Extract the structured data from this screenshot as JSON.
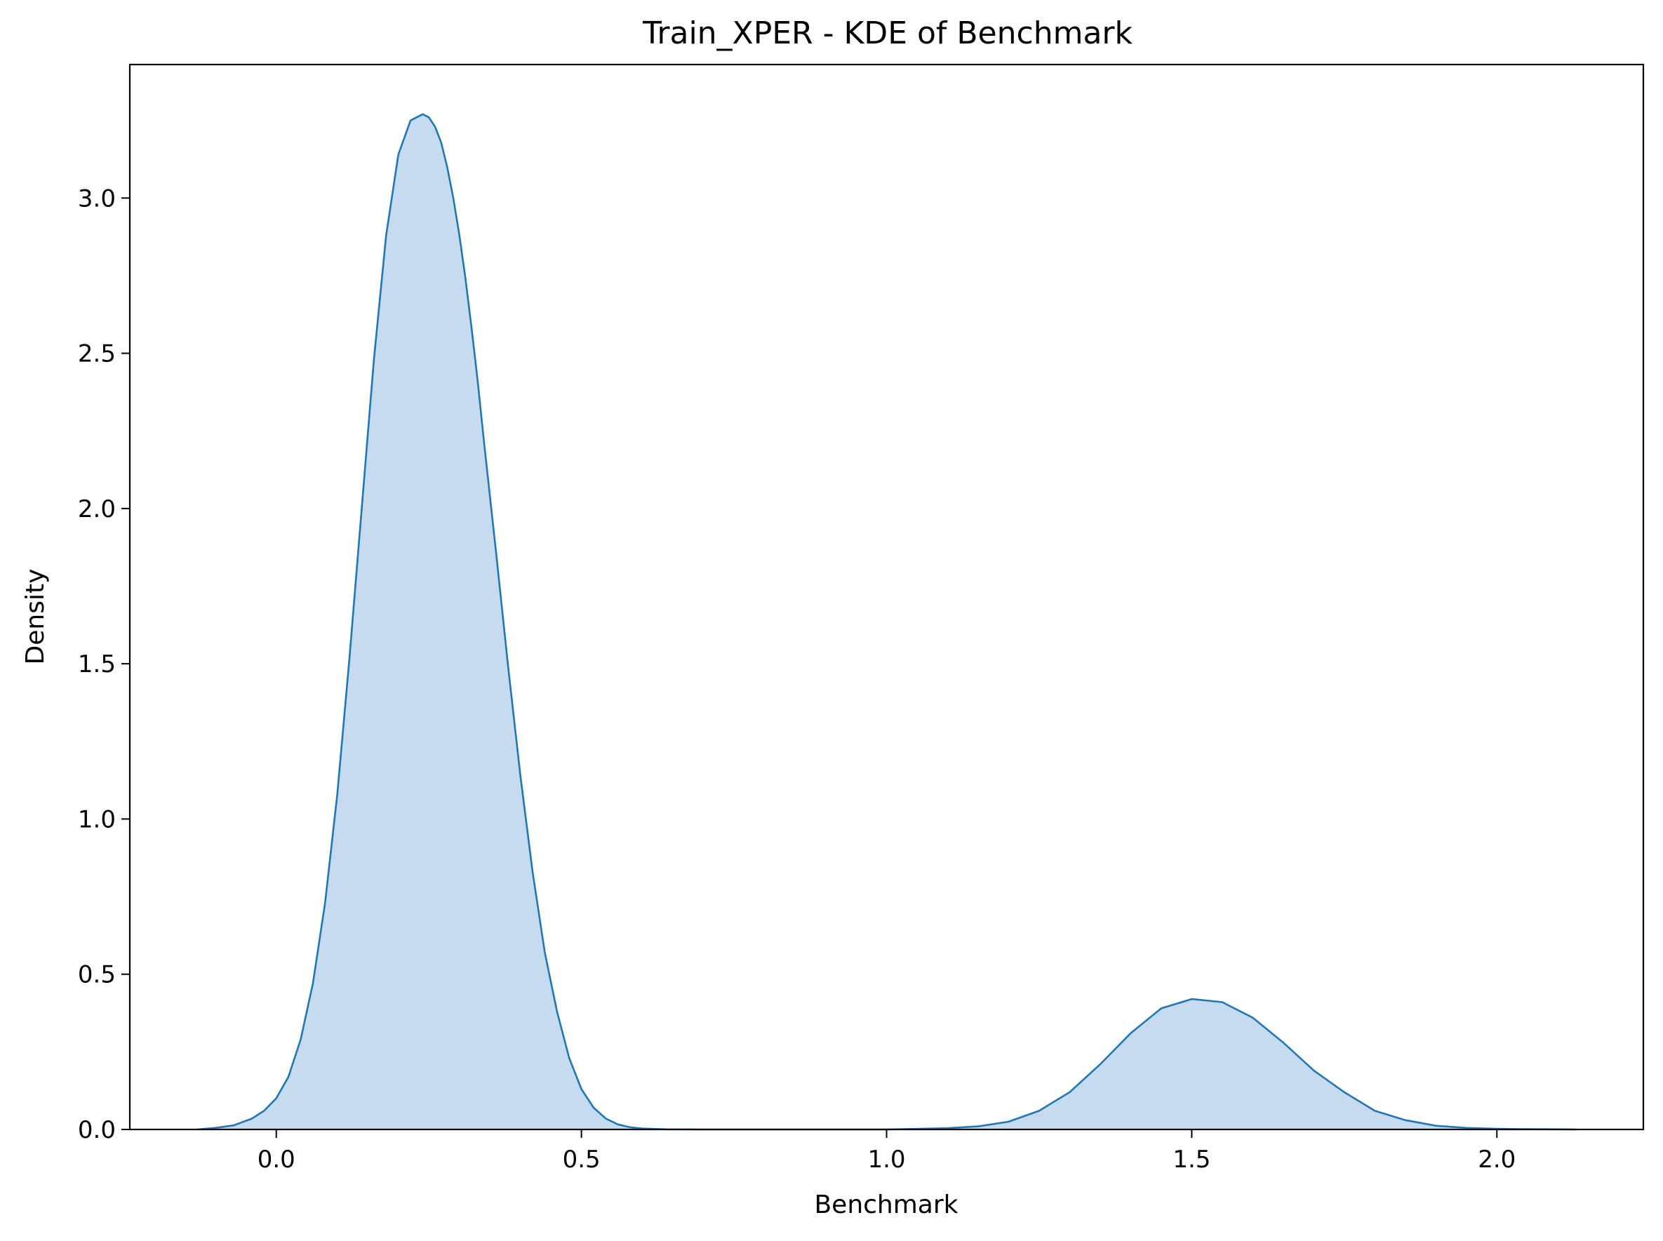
{
  "chart_data": {
    "type": "area",
    "title": "Train_XPER - KDE of Benchmark",
    "xlabel": "Benchmark",
    "ylabel": "Density",
    "xlim": [
      -0.24,
      2.24
    ],
    "ylim": [
      0.0,
      3.43
    ],
    "xticks": [
      0.0,
      0.5,
      1.0,
      1.5,
      2.0
    ],
    "xtick_labels": [
      "0.0",
      "0.5",
      "1.0",
      "1.5",
      "2.0"
    ],
    "yticks": [
      0.0,
      0.5,
      1.0,
      1.5,
      2.0,
      2.5,
      3.0
    ],
    "ytick_labels": [
      "0.0",
      "0.5",
      "1.0",
      "1.5",
      "2.0",
      "2.5",
      "3.0"
    ],
    "grid": false,
    "legend": "none",
    "series": [
      {
        "x": [
          -0.13,
          -0.1,
          -0.07,
          -0.04,
          -0.02,
          0.0,
          0.02,
          0.04,
          0.06,
          0.08,
          0.1,
          0.12,
          0.14,
          0.16,
          0.18,
          0.2,
          0.22,
          0.24,
          0.25,
          0.26,
          0.27,
          0.28,
          0.29,
          0.3,
          0.31,
          0.32,
          0.33,
          0.34,
          0.36,
          0.38,
          0.4,
          0.42,
          0.44,
          0.46,
          0.48,
          0.5,
          0.52,
          0.54,
          0.56,
          0.58,
          0.6,
          0.64,
          0.7,
          0.8,
          0.9,
          1.0,
          1.1,
          1.15,
          1.2,
          1.25,
          1.3,
          1.35,
          1.4,
          1.45,
          1.5,
          1.55,
          1.6,
          1.65,
          1.7,
          1.75,
          1.8,
          1.85,
          1.9,
          1.95,
          2.0,
          2.05,
          2.1,
          2.13
        ],
        "y": [
          0.0,
          0.005,
          0.013,
          0.035,
          0.06,
          0.1,
          0.17,
          0.29,
          0.47,
          0.73,
          1.08,
          1.52,
          2.0,
          2.48,
          2.88,
          3.14,
          3.25,
          3.27,
          3.26,
          3.23,
          3.18,
          3.1,
          3.0,
          2.88,
          2.74,
          2.58,
          2.41,
          2.22,
          1.86,
          1.49,
          1.14,
          0.83,
          0.57,
          0.38,
          0.23,
          0.13,
          0.07,
          0.035,
          0.016,
          0.007,
          0.003,
          0.0005,
          0.0,
          0.0,
          0.0,
          0.0,
          0.004,
          0.01,
          0.025,
          0.06,
          0.12,
          0.21,
          0.31,
          0.39,
          0.42,
          0.41,
          0.36,
          0.28,
          0.19,
          0.12,
          0.06,
          0.03,
          0.012,
          0.005,
          0.002,
          0.001,
          0.0005,
          0.0
        ],
        "color": "#1f77b4",
        "fill_color": "#c6dbef"
      }
    ]
  }
}
